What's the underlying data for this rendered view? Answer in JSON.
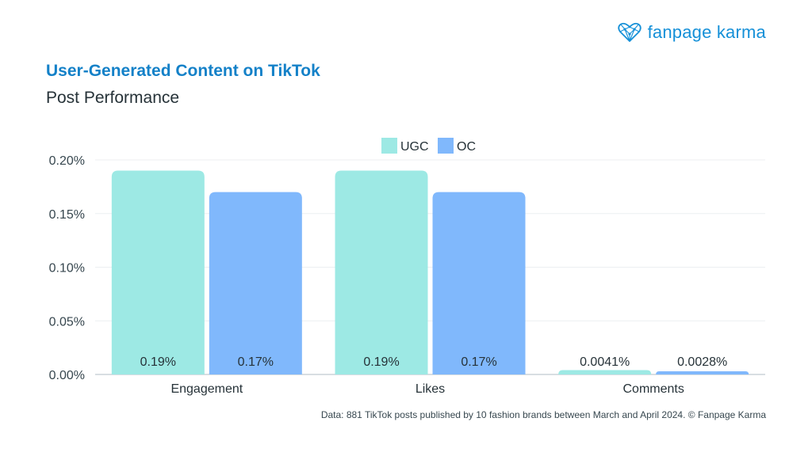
{
  "brand": {
    "name": "fanpage karma",
    "logo_icon": "heart-network-icon",
    "color": "#1590d8"
  },
  "title": "User-Generated Content on TikTok",
  "subtitle": "Post Performance",
  "footer": "Data: 881 TikTok posts published by 10 fashion brands between March and April 2024. © Fanpage Karma",
  "chart_data": {
    "type": "bar",
    "categories": [
      "Engagement",
      "Likes",
      "Comments"
    ],
    "series": [
      {
        "name": "UGC",
        "color": "#9de9e4",
        "values": [
          0.0019,
          0.0019,
          4.1e-05
        ],
        "labels": [
          "0.19%",
          "0.19%",
          "0.0041%"
        ]
      },
      {
        "name": "OC",
        "color": "#80b8fc",
        "values": [
          0.0017,
          0.0017,
          2.8e-05
        ],
        "labels": [
          "0.17%",
          "0.17%",
          "0.0028%"
        ]
      }
    ],
    "ylim": [
      0,
      0.002
    ],
    "yticks": [
      0,
      0.0005,
      0.001,
      0.0015,
      0.002
    ],
    "ytick_labels": [
      "0.00%",
      "0.05%",
      "0.10%",
      "0.15%",
      "0.20%"
    ],
    "xlabel": "",
    "ylabel": "",
    "legend": "top-center",
    "grid": true
  }
}
